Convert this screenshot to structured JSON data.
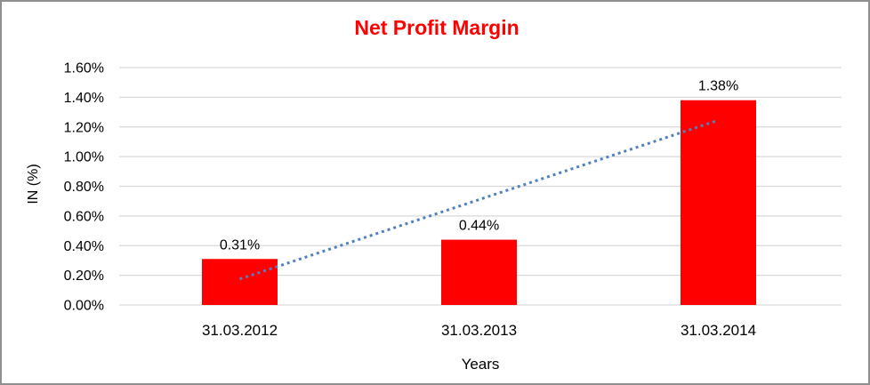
{
  "chart_data": {
    "type": "bar",
    "title": "Net Profit Margin",
    "title_color": "#FF0000",
    "xlabel": "Years",
    "ylabel": "IN (%)",
    "categories": [
      "31.03.2012",
      "31.03.2013",
      "31.03.2014"
    ],
    "values": [
      0.31,
      0.44,
      1.38
    ],
    "data_labels": [
      "0.31%",
      "0.44%",
      "1.38%"
    ],
    "ylim": [
      0,
      1.6
    ],
    "ytick_step": 0.2,
    "ytick_labels": [
      "0.00%",
      "0.20%",
      "0.40%",
      "0.60%",
      "0.80%",
      "1.00%",
      "1.20%",
      "1.40%",
      "1.60%"
    ],
    "grid": true,
    "legend": "none",
    "bar_color": "#FF0000",
    "gridline_color": "#D9D9D9",
    "axis_line_color": "#D9D9D9",
    "label_color": "#000000",
    "trendline": {
      "style": "dotted",
      "color": "#4F81BD",
      "start_value": 0.175,
      "end_value": 1.245
    }
  }
}
